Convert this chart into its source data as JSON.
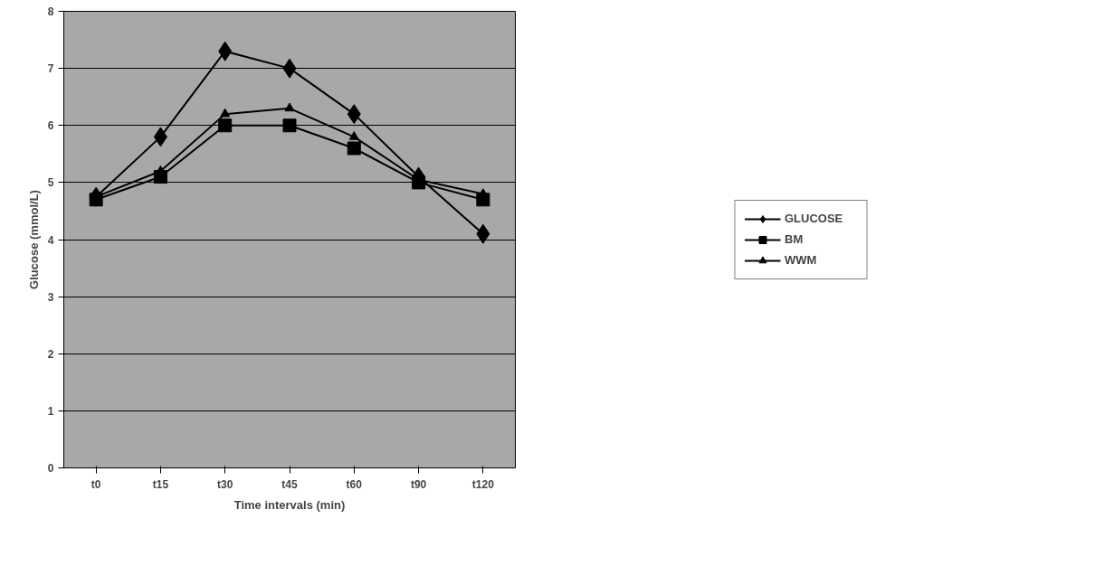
{
  "chart_data": {
    "type": "line",
    "xlabel": "Time intervals (min)",
    "ylabel": "Glucose (mmol/L)",
    "categories": [
      "t0",
      "t15",
      "t30",
      "t45",
      "t60",
      "t90",
      "t120"
    ],
    "series": [
      {
        "name": "GLUCOSE",
        "color": "#000000",
        "marker": "diamond",
        "values": [
          4.75,
          5.8,
          7.3,
          7.0,
          6.2,
          5.1,
          4.1
        ]
      },
      {
        "name": "BM",
        "color": "#000000",
        "marker": "square",
        "values": [
          4.7,
          5.1,
          6.0,
          6.0,
          5.6,
          5.0,
          4.7
        ]
      },
      {
        "name": "WWM",
        "color": "#000000",
        "marker": "triangle",
        "values": [
          4.75,
          5.2,
          6.2,
          6.3,
          5.8,
          5.05,
          4.8
        ]
      }
    ],
    "ylim": [
      0,
      8
    ],
    "yticks": [
      0,
      1,
      2,
      3,
      4,
      5,
      6,
      7,
      8
    ],
    "grid": "y",
    "legend": "right",
    "line_style": "solid"
  }
}
